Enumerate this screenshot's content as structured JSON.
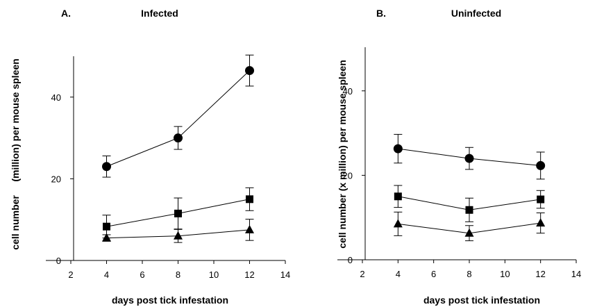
{
  "chart_data": [
    {
      "type": "line",
      "panel_label": "A.",
      "title": "Infected",
      "xlabel": "days post tick infestation",
      "ylabel": "cell number     (million) per mouse spleen",
      "xlim": [
        2,
        14
      ],
      "ylim": [
        0,
        50
      ],
      "xticks": [
        2,
        4,
        6,
        8,
        10,
        12,
        14
      ],
      "yticks": [
        0,
        20,
        40
      ],
      "x": [
        4,
        8,
        12
      ],
      "series": [
        {
          "marker": "circle",
          "values": [
            23,
            30,
            46.5
          ],
          "errors": [
            2.6,
            2.8,
            3.8
          ]
        },
        {
          "marker": "square",
          "values": [
            8.3,
            11.5,
            15
          ],
          "errors": [
            2.8,
            3.8,
            2.8
          ]
        },
        {
          "marker": "triangle",
          "values": [
            5.5,
            6,
            7.5
          ],
          "errors": [
            0.8,
            1.6,
            2.6
          ]
        }
      ]
    },
    {
      "type": "line",
      "panel_label": "B.",
      "title": "Uninfected",
      "xlabel": "days post tick infestation",
      "ylabel": "cell number (x million) per mouse spleen",
      "xlim": [
        2,
        14
      ],
      "ylim": [
        0,
        50
      ],
      "xticks": [
        2,
        4,
        6,
        8,
        10,
        12,
        14
      ],
      "yticks": [
        0,
        20,
        40
      ],
      "x": [
        4,
        8,
        12
      ],
      "series": [
        {
          "marker": "circle",
          "values": [
            26.3,
            24,
            22.3
          ],
          "errors": [
            3.4,
            2.6,
            3.2
          ]
        },
        {
          "marker": "square",
          "values": [
            15,
            11.8,
            14.3
          ],
          "errors": [
            2.6,
            2.8,
            2.1
          ]
        },
        {
          "marker": "triangle",
          "values": [
            8.5,
            6.3,
            8.7
          ],
          "errors": [
            2.8,
            1.8,
            2.4
          ]
        }
      ]
    }
  ]
}
